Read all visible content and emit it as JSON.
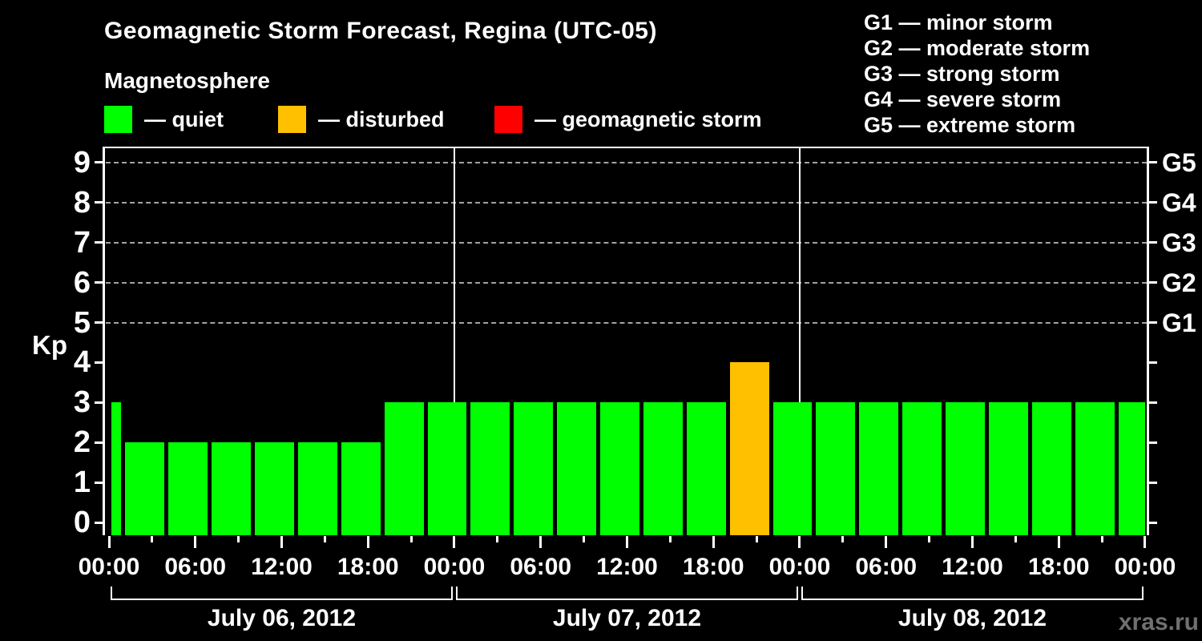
{
  "header": {
    "title": "Geomagnetic Storm Forecast, Regina (UTC-05)",
    "subtitle": "Magnetosphere",
    "legend": [
      {
        "status": "quiet",
        "label": "— quiet"
      },
      {
        "status": "disturbed",
        "label": "— disturbed"
      },
      {
        "status": "storm",
        "label": "— geomagnetic storm"
      }
    ],
    "g_scale_legend": [
      "G1 — minor storm",
      "G2 — moderate storm",
      "G3 — strong storm",
      "G4 — severe storm",
      "G5 — extreme storm"
    ]
  },
  "watermark": "xras.ru",
  "chart_data": {
    "type": "bar",
    "title": "Geomagnetic Storm Forecast, Regina (UTC-05)",
    "subtitle": "Magnetosphere",
    "ylabel": "Kp",
    "ylim": [
      0,
      9
    ],
    "y_ticks": [
      0,
      1,
      2,
      3,
      4,
      5,
      6,
      7,
      8,
      9
    ],
    "gridline_levels": [
      5,
      6,
      7,
      8,
      9
    ],
    "grid": "dashed horizontal at Kp 5-9, legend right",
    "colors": {
      "quiet": "#00ff00",
      "disturbed": "#ffc000",
      "storm": "#ff0000"
    },
    "x_total_hours": 72,
    "x_minor_step_hours": 3,
    "x_major_step_hours": 6,
    "x_ticks": [
      {
        "hour": 0,
        "label": "00:00"
      },
      {
        "hour": 6,
        "label": "06:00"
      },
      {
        "hour": 12,
        "label": "12:00"
      },
      {
        "hour": 18,
        "label": "18:00"
      },
      {
        "hour": 24,
        "label": "00:00"
      },
      {
        "hour": 30,
        "label": "06:00"
      },
      {
        "hour": 36,
        "label": "12:00"
      },
      {
        "hour": 42,
        "label": "18:00"
      },
      {
        "hour": 48,
        "label": "00:00"
      },
      {
        "hour": 54,
        "label": "06:00"
      },
      {
        "hour": 60,
        "label": "12:00"
      },
      {
        "hour": 66,
        "label": "18:00"
      },
      {
        "hour": 72,
        "label": "00:00"
      }
    ],
    "day_boundaries_hours": [
      24,
      48
    ],
    "days": [
      {
        "label": "July 06, 2012",
        "start_hour": 0,
        "end_hour": 24
      },
      {
        "label": "July 07, 2012",
        "start_hour": 24,
        "end_hour": 48
      },
      {
        "label": "July 08, 2012",
        "start_hour": 48,
        "end_hour": 72
      }
    ],
    "right_axis_labels": [
      {
        "kp": 5,
        "label": "G1"
      },
      {
        "kp": 6,
        "label": "G2"
      },
      {
        "kp": 7,
        "label": "G3"
      },
      {
        "kp": 8,
        "label": "G4"
      },
      {
        "kp": 9,
        "label": "G5"
      }
    ],
    "bars": [
      {
        "start_hour": 0,
        "end_hour": 1,
        "kp": 3,
        "status": "quiet"
      },
      {
        "start_hour": 1,
        "end_hour": 4,
        "kp": 2,
        "status": "quiet"
      },
      {
        "start_hour": 4,
        "end_hour": 7,
        "kp": 2,
        "status": "quiet"
      },
      {
        "start_hour": 7,
        "end_hour": 10,
        "kp": 2,
        "status": "quiet"
      },
      {
        "start_hour": 10,
        "end_hour": 13,
        "kp": 2,
        "status": "quiet"
      },
      {
        "start_hour": 13,
        "end_hour": 16,
        "kp": 2,
        "status": "quiet"
      },
      {
        "start_hour": 16,
        "end_hour": 19,
        "kp": 2,
        "status": "quiet"
      },
      {
        "start_hour": 19,
        "end_hour": 22,
        "kp": 3,
        "status": "quiet"
      },
      {
        "start_hour": 22,
        "end_hour": 25,
        "kp": 3,
        "status": "quiet"
      },
      {
        "start_hour": 25,
        "end_hour": 28,
        "kp": 3,
        "status": "quiet"
      },
      {
        "start_hour": 28,
        "end_hour": 31,
        "kp": 3,
        "status": "quiet"
      },
      {
        "start_hour": 31,
        "end_hour": 34,
        "kp": 3,
        "status": "quiet"
      },
      {
        "start_hour": 34,
        "end_hour": 37,
        "kp": 3,
        "status": "quiet"
      },
      {
        "start_hour": 37,
        "end_hour": 40,
        "kp": 3,
        "status": "quiet"
      },
      {
        "start_hour": 40,
        "end_hour": 43,
        "kp": 3,
        "status": "quiet"
      },
      {
        "start_hour": 43,
        "end_hour": 46,
        "kp": 4,
        "status": "disturbed"
      },
      {
        "start_hour": 46,
        "end_hour": 49,
        "kp": 3,
        "status": "quiet"
      },
      {
        "start_hour": 49,
        "end_hour": 52,
        "kp": 3,
        "status": "quiet"
      },
      {
        "start_hour": 52,
        "end_hour": 55,
        "kp": 3,
        "status": "quiet"
      },
      {
        "start_hour": 55,
        "end_hour": 58,
        "kp": 3,
        "status": "quiet"
      },
      {
        "start_hour": 58,
        "end_hour": 61,
        "kp": 3,
        "status": "quiet"
      },
      {
        "start_hour": 61,
        "end_hour": 64,
        "kp": 3,
        "status": "quiet"
      },
      {
        "start_hour": 64,
        "end_hour": 67,
        "kp": 3,
        "status": "quiet"
      },
      {
        "start_hour": 67,
        "end_hour": 70,
        "kp": 3,
        "status": "quiet"
      },
      {
        "start_hour": 70,
        "end_hour": 73,
        "kp": 3,
        "status": "quiet"
      }
    ]
  }
}
